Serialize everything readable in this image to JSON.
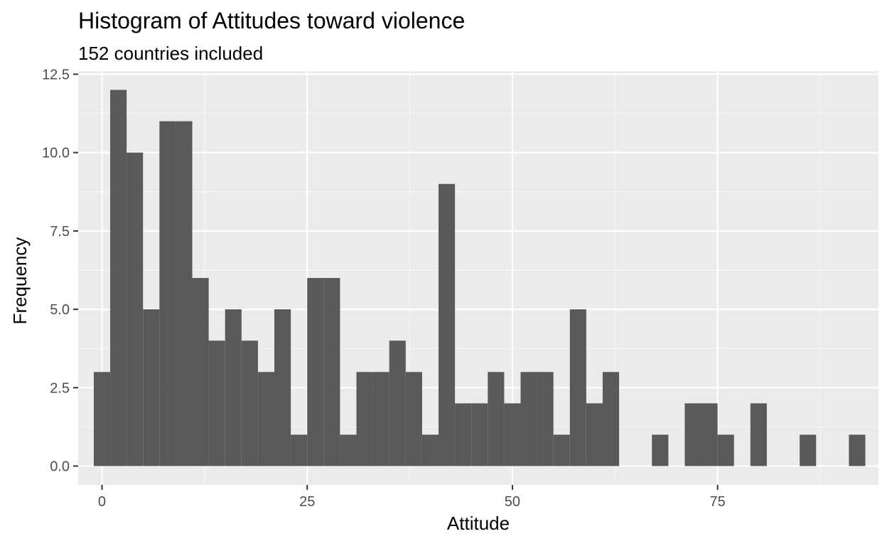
{
  "chart_data": {
    "type": "bar",
    "title": "Histogram of Attitudes toward violence",
    "subtitle": "152 countries included",
    "xlabel": "Attitude",
    "ylabel": "Frequency",
    "xlim": [
      -2.9,
      94.6
    ],
    "ylim": [
      -0.6,
      12.6
    ],
    "x_ticks": [
      0,
      25,
      50,
      75
    ],
    "x_tick_labels": [
      "0",
      "25",
      "50",
      "75"
    ],
    "y_ticks": [
      0,
      2.5,
      5,
      7.5,
      10,
      12.5
    ],
    "y_tick_labels": [
      "0.0",
      "2.5",
      "5.0",
      "7.5",
      "10.0",
      "12.5"
    ],
    "grid": true,
    "bin_width": 2,
    "bins": [
      {
        "start": -1,
        "end": 1,
        "count": 3
      },
      {
        "start": 1,
        "end": 3,
        "count": 12
      },
      {
        "start": 3,
        "end": 5,
        "count": 10
      },
      {
        "start": 5,
        "end": 7,
        "count": 5
      },
      {
        "start": 7,
        "end": 9,
        "count": 11
      },
      {
        "start": 9,
        "end": 11,
        "count": 11
      },
      {
        "start": 11,
        "end": 13,
        "count": 6
      },
      {
        "start": 13,
        "end": 15,
        "count": 4
      },
      {
        "start": 15,
        "end": 17,
        "count": 5
      },
      {
        "start": 17,
        "end": 19,
        "count": 4
      },
      {
        "start": 19,
        "end": 21,
        "count": 3
      },
      {
        "start": 21,
        "end": 23,
        "count": 5
      },
      {
        "start": 23,
        "end": 25,
        "count": 1
      },
      {
        "start": 25,
        "end": 27,
        "count": 6
      },
      {
        "start": 27,
        "end": 29,
        "count": 6
      },
      {
        "start": 29,
        "end": 31,
        "count": 1
      },
      {
        "start": 31,
        "end": 33,
        "count": 3
      },
      {
        "start": 33,
        "end": 35,
        "count": 3
      },
      {
        "start": 35,
        "end": 37,
        "count": 4
      },
      {
        "start": 37,
        "end": 39,
        "count": 3
      },
      {
        "start": 39,
        "end": 41,
        "count": 1
      },
      {
        "start": 41,
        "end": 43,
        "count": 9
      },
      {
        "start": 43,
        "end": 45,
        "count": 2
      },
      {
        "start": 45,
        "end": 47,
        "count": 2
      },
      {
        "start": 47,
        "end": 49,
        "count": 3
      },
      {
        "start": 49,
        "end": 51,
        "count": 2
      },
      {
        "start": 51,
        "end": 53,
        "count": 3
      },
      {
        "start": 53,
        "end": 55,
        "count": 3
      },
      {
        "start": 55,
        "end": 57,
        "count": 1
      },
      {
        "start": 57,
        "end": 59,
        "count": 5
      },
      {
        "start": 59,
        "end": 61,
        "count": 2
      },
      {
        "start": 61,
        "end": 63,
        "count": 3
      },
      {
        "start": 67,
        "end": 69,
        "count": 1
      },
      {
        "start": 71,
        "end": 73,
        "count": 2
      },
      {
        "start": 73,
        "end": 75,
        "count": 2
      },
      {
        "start": 75,
        "end": 77,
        "count": 1
      },
      {
        "start": 79,
        "end": 81,
        "count": 2
      },
      {
        "start": 85,
        "end": 87,
        "count": 1
      },
      {
        "start": 91,
        "end": 93,
        "count": 1
      }
    ],
    "colors": {
      "bar": "#595959",
      "panel": "#ebebeb",
      "grid_major": "#ffffff",
      "grid_minor": "#f5f5f5",
      "tick": "#333333"
    }
  }
}
